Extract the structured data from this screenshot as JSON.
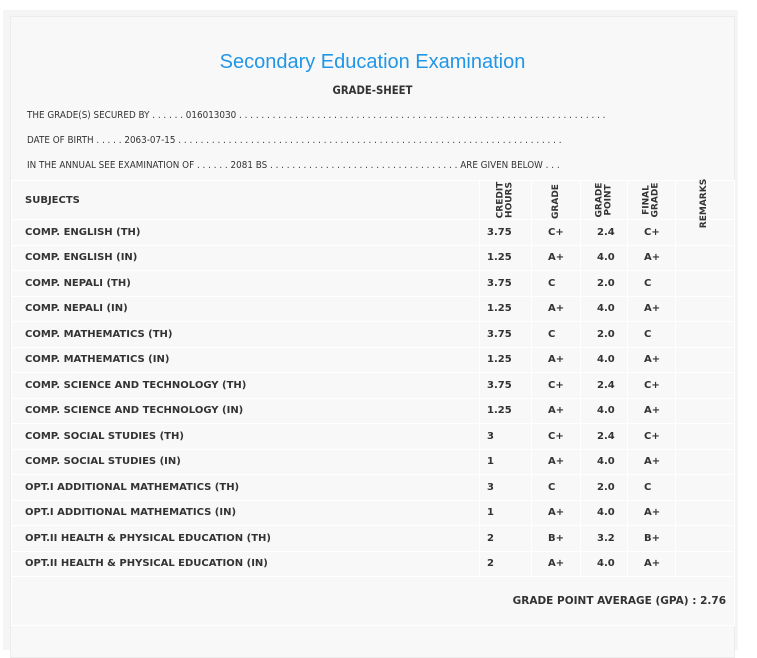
{
  "title": "Secondary Education Examination",
  "subtitle": "GRADE-SHEET",
  "lines": [
    "THE GRADE(S) SECURED BY . . . . . .  0160130З0 . . . . . . . . . . . . . . . . . . . . . . . . . . . . . . . . . . . . . . . . . . . . . . . . . . . . . . . . . . . . . . . . . .",
    "DATE OF BIRTH . . . . .  2063-07-15 . . . . . . . . . . . . . . . . . . . . . . . . . . . . . . . . . . . . . . . . . . . . . . . . . . . . . . . . . . . . . . . . . . . . .",
    "IN THE ANNUAL SEE EXAMINATION OF . . . . . .  2081 BS . . . . . . . . . . . . . . . . . . . . . . . . . . . . . . . . . . ARE GIVEN BELOW . . ."
  ],
  "headers": {
    "subjects": "SUBJECTS",
    "credit": [
      "CREDIT",
      "HOURS"
    ],
    "grade": "GRADE",
    "grade_point": [
      "GRADE",
      "POINT"
    ],
    "final": [
      "FINAL",
      "GRADE"
    ],
    "remarks": "REMARKS"
  },
  "rows": [
    [
      "COMP. ENGLISH (TH)",
      "3.75",
      "C+",
      "2.4",
      "C+"
    ],
    [
      "COMP. ENGLISH (IN)",
      "1.25",
      "A+",
      "4.0",
      "A+"
    ],
    [
      "COMP. NEPALI (TH)",
      "3.75",
      "C",
      "2.0",
      "C"
    ],
    [
      "COMP. NEPALI (IN)",
      "1.25",
      "A+",
      "4.0",
      "A+"
    ],
    [
      "COMP. MATHEMATICS (TH)",
      "3.75",
      "C",
      "2.0",
      "C"
    ],
    [
      "COMP. MATHEMATICS (IN)",
      "1.25",
      "A+",
      "4.0",
      "A+"
    ],
    [
      "COMP. SCIENCE AND TECHNOLOGY (TH)",
      "3.75",
      "C+",
      "2.4",
      "C+"
    ],
    [
      "COMP. SCIENCE AND TECHNOLOGY (IN)",
      "1.25",
      "A+",
      "4.0",
      "A+"
    ],
    [
      "COMP. SOCIAL STUDIES (TH)",
      "3",
      "C+",
      "2.4",
      "C+"
    ],
    [
      "COMP. SOCIAL STUDIES (IN)",
      "1",
      "A+",
      "4.0",
      "A+"
    ],
    [
      "OPT.I ADDITIONAL MATHEMATICS (TH)",
      "3",
      "C",
      "2.0",
      "C"
    ],
    [
      "OPT.I ADDITIONAL MATHEMATICS (IN)",
      "1",
      "A+",
      "4.0",
      "A+"
    ],
    [
      "OPT.II HEALTH & PHYSICAL EDUCATION (TH)",
      "2",
      "B+",
      "3.2",
      "B+"
    ],
    [
      "OPT.II HEALTH & PHYSICAL EDUCATION (IN)",
      "2",
      "A+",
      "4.0",
      "A+"
    ]
  ],
  "gpa": "GRADE POINT AVERAGE (GPA) : 2.76",
  "colors": {
    "title": "#2196e6",
    "background": "#f8f8f8"
  }
}
